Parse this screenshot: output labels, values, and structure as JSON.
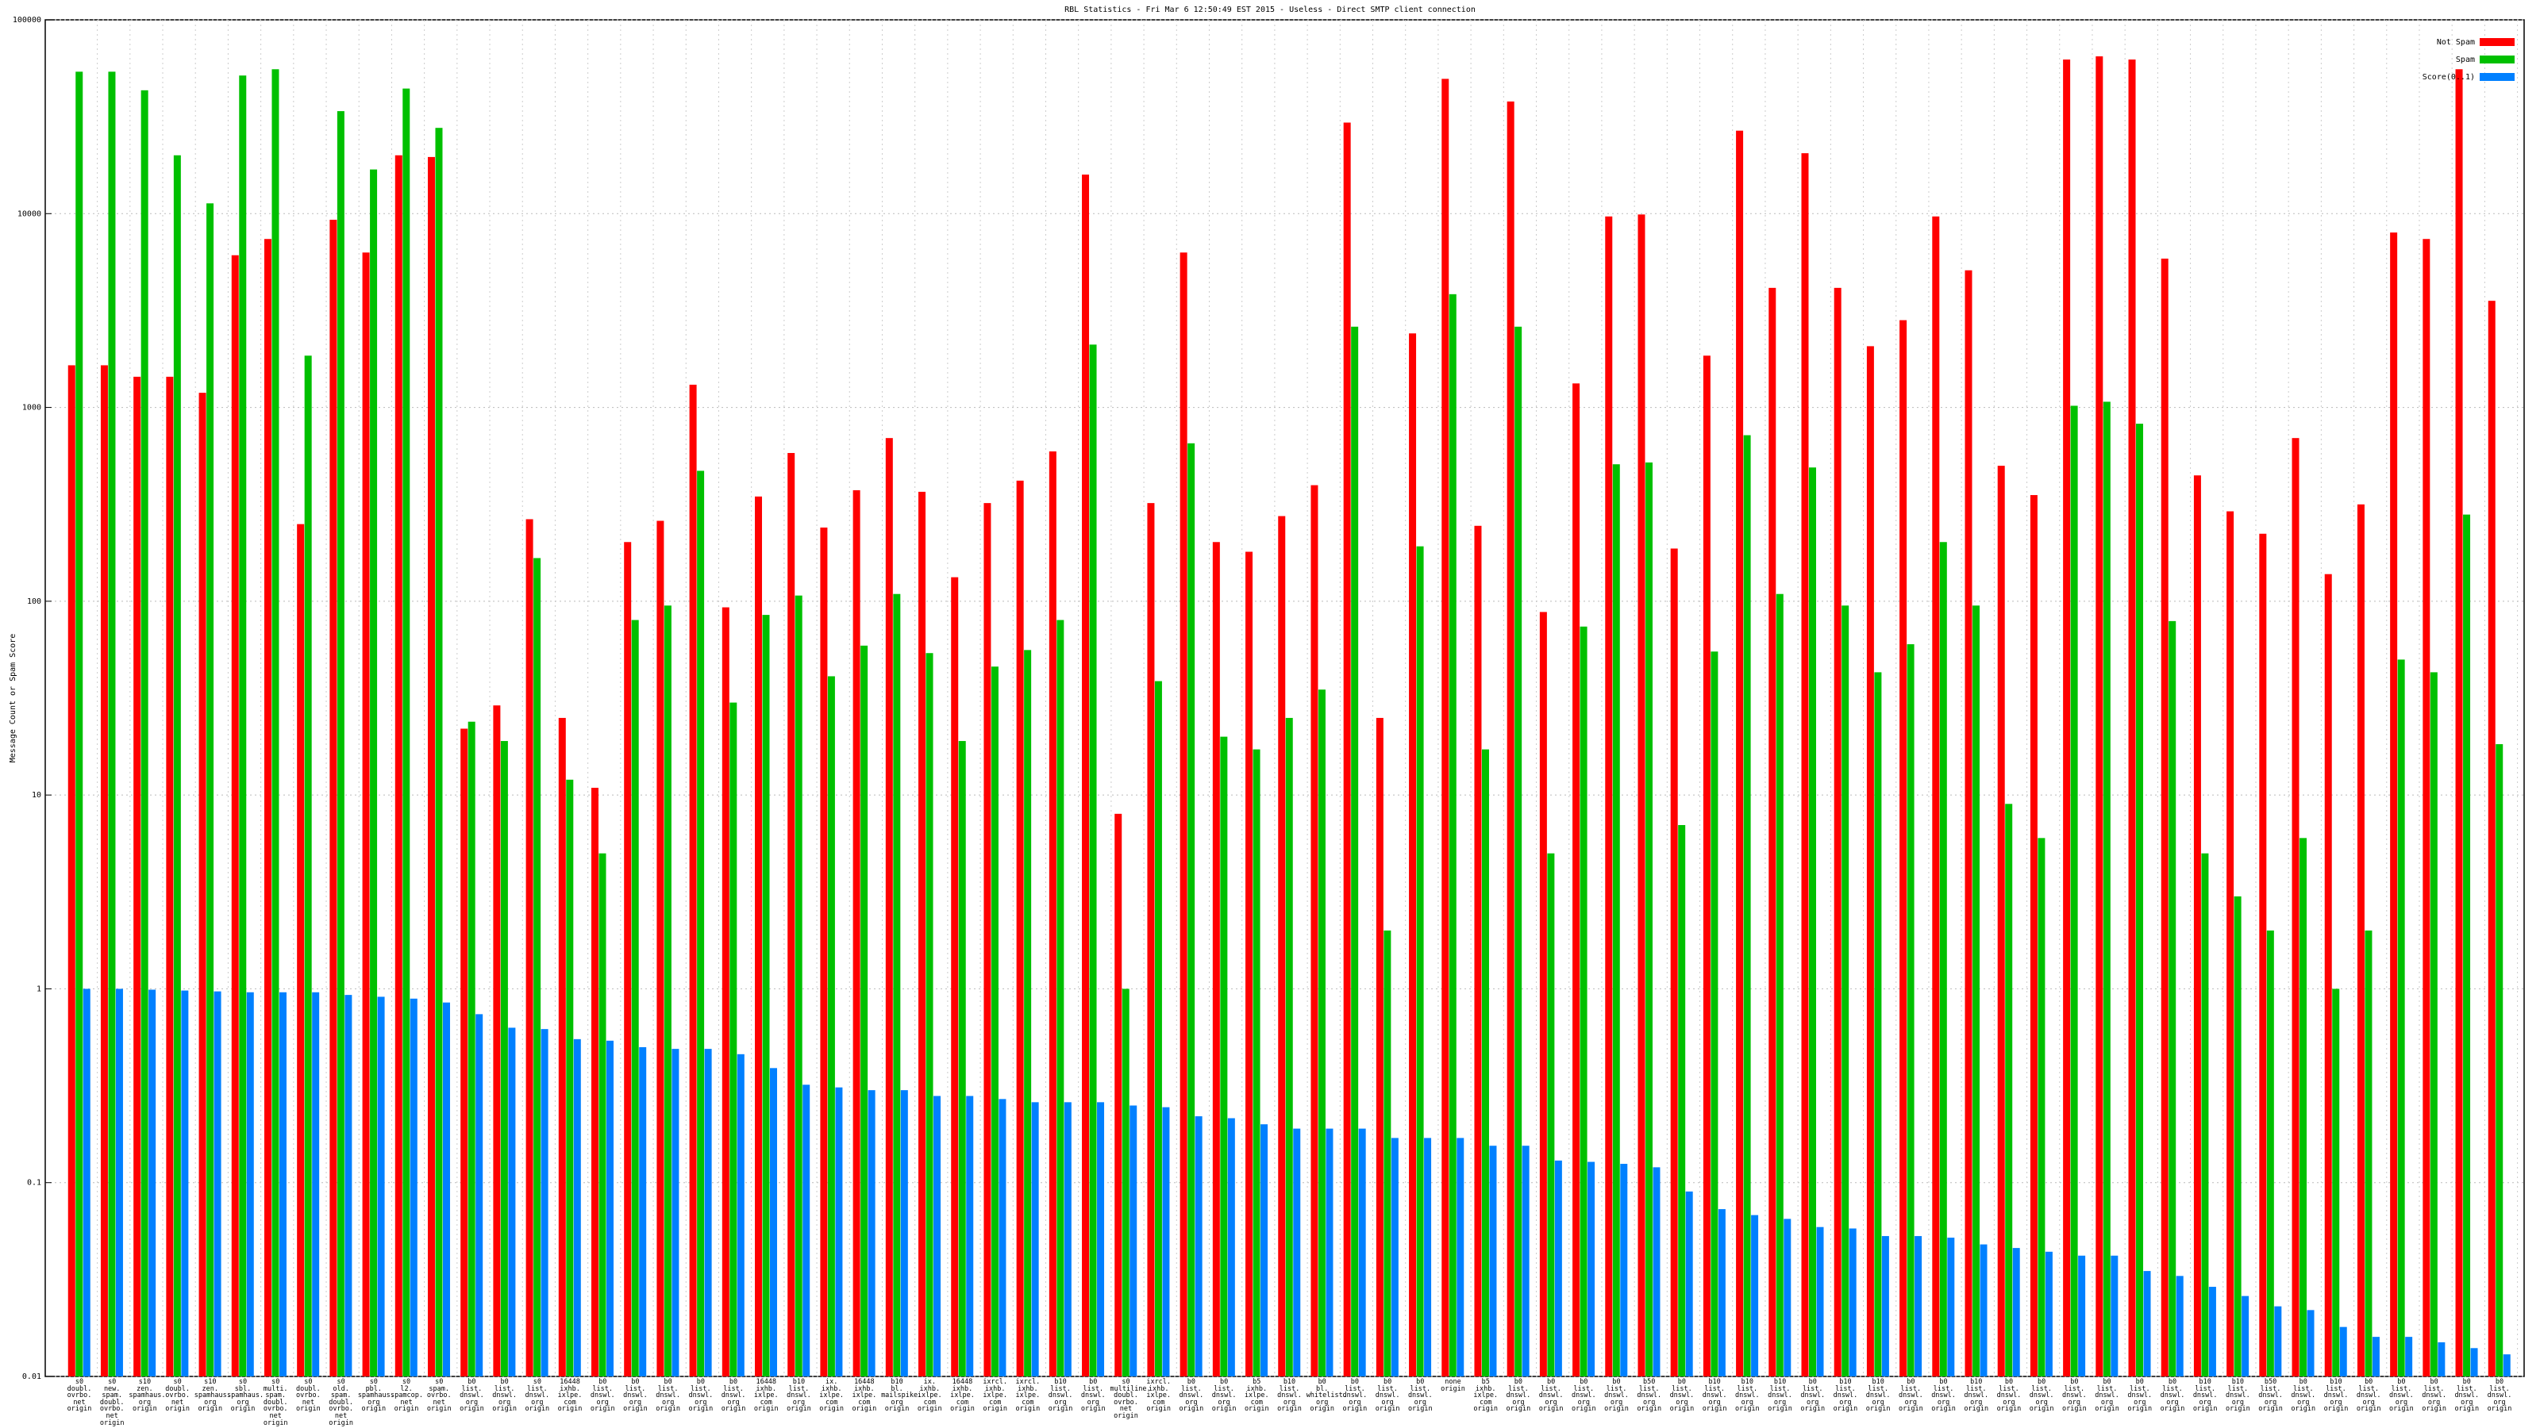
{
  "chart_data": {
    "type": "bar",
    "title": "RBL Statistics - Fri Mar  6 12:50:49 EST 2015 - Useless - Direct SMTP client connection",
    "y_label": "Message Count or Spam Score",
    "log_scale": true,
    "grid": true,
    "legend": "upper right",
    "ylim": [
      0.01,
      100000
    ],
    "yticks": [
      0.01,
      0.1,
      1,
      10,
      100,
      1000,
      10000,
      100000
    ],
    "categories": [
      "s0\ndoubl.\novrbo.\nnet\norigin",
      "s0\nnew.\nspam.\ndoubl.\novrbo.\nnet\norigin",
      "s10\nzen.\nspamhaus.\norg\norigin",
      "s0\ndoubl.\novrbo.\nnet\norigin",
      "s10\nzen.\nspamhaus.\norg\norigin",
      "s0\nsbl.\nspamhaus.\norg\norigin",
      "s0\nmulti.\nspam.\ndoubl.\novrbo.\nnet\norigin",
      "s0\ndoubl.\novrbo.\nnet\norigin",
      "s0\nold.\nspam.\ndoubl.\novrbo.\nnet\norigin",
      "s0\npbl.\nspamhaus.\norg\norigin",
      "s0\nl2.\nspamcop.\nnet\norigin",
      "s0\nspam.\novrbo.\nnet\norigin",
      "b0\nlist.\ndnswl.\norg\norigin",
      "b0\nlist.\ndnswl.\norg\norigin",
      "s0\nlist.\ndnswl.\norg\norigin",
      "16448\nixhb.\nixlpe.\ncom\norigin",
      "b0\nlist.\ndnswl.\norg\norigin",
      "b0\nlist.\ndnswl.\norg\norigin",
      "b0\nlist.\ndnswl.\norg\norigin",
      "b0\nlist.\ndnswl.\norg\norigin",
      "b0\nlist.\ndnswl.\norg\norigin",
      "16448\nixhb.\nixlpe.\ncom\norigin",
      "b10\nlist.\ndnswl.\norg\norigin",
      "ix.\nixhb.\nixlpe.\ncom\norigin",
      "16448\nixhb.\nixlpe.\ncom\norigin",
      "b10\nbl.\nmailspike.\norg\norigin",
      "ix.\nixhb.\nixlpe.\ncom\norigin",
      "16448\nixhb.\nixlpe.\ncom\norigin",
      "ixrcl.\nixhb.\nixlpe.\ncom\norigin",
      "ixrcl.\nixhb.\nixlpe.\ncom\norigin",
      "b10\nlist.\ndnswl.\norg\norigin",
      "b0\nlist.\ndnswl.\norg\norigin",
      "s0\nmultiline.\ndoubl.\novrbo.\nnet\norigin",
      "ixrcl.\nixhb.\nixlpe.\ncom\norigin",
      "b0\nlist.\ndnswl.\norg\norigin",
      "b0\nlist.\ndnswl.\norg\norigin",
      "b5\nixhb.\nixlpe.\ncom\norigin",
      "b10\nlist.\ndnswl.\norg\norigin",
      "b0\nbl.\nwhitelist.\norg\norigin",
      "b0\nlist.\ndnswl.\norg\norigin",
      "b0\nlist.\ndnswl.\norg\norigin",
      "b0\nlist.\ndnswl.\norg\norigin",
      "none\norigin",
      "b5\nixhb.\nixlpe.\ncom\norigin",
      "b0\nlist.\ndnswl.\norg\norigin",
      "b0\nlist.\ndnswl.\norg\norigin",
      "b0\nlist.\ndnswl.\norg\norigin",
      "b0\nlist.\ndnswl.\norg\norigin",
      "b50\nlist.\ndnswl.\norg\norigin",
      "b0\nlist.\ndnswl.\norg\norigin",
      "b10\nlist.\ndnswl.\norg\norigin",
      "b10\nlist.\ndnswl.\norg\norigin",
      "b10\nlist.\ndnswl.\norg\norigin",
      "b0\nlist.\ndnswl.\norg\norigin",
      "b10\nlist.\ndnswl.\norg\norigin",
      "b10\nlist.\ndnswl.\norg\norigin",
      "b0\nlist.\ndnswl.\norg\norigin",
      "b0\nlist.\ndnswl.\norg\norigin",
      "b10\nlist.\ndnswl.\norg\norigin",
      "b0\nlist.\ndnswl.\norg\norigin",
      "b0\nlist.\ndnswl.\norg\norigin",
      "b0\nlist.\ndnswl.\norg\norigin",
      "b0\nlist.\ndnswl.\norg\norigin",
      "b0\nlist.\ndnswl.\norg\norigin",
      "b0\nlist.\ndnswl.\norg\norigin",
      "b10\nlist.\ndnswl.\norg\norigin",
      "b10\nlist.\ndnswl.\norg\norigin",
      "b50\nlist.\ndnswl.\norg\norigin",
      "b0\nlist.\ndnswl.\norg\norigin",
      "b10\nlist.\ndnswl.\norg\norigin",
      "b0\nlist.\ndnswl.\norg\norigin",
      "b0\nlist.\ndnswl.\norg\norigin",
      "b0\nlist.\ndnswl.\norg\norigin",
      "b0\nlist.\ndnswl.\norg\norigin",
      "b0\nlist.\ndnswl.\norg\norigin"
    ],
    "series": [
      {
        "name": "Not Spam",
        "color": "#ff0000",
        "values": [
          1650,
          1650,
          1440,
          1440,
          1190,
          6100,
          7400,
          250,
          9300,
          6300,
          20000,
          19600,
          22,
          29,
          265,
          25,
          10.9,
          202,
          260,
          1310,
          93,
          347,
          582,
          240,
          374,
          695,
          367,
          133,
          321,
          419,
          593,
          15900,
          8,
          321,
          6300,
          202,
          180,
          275,
          397,
          29500,
          25,
          2410,
          49600,
          245,
          37900,
          88,
          1330,
          9670,
          9900,
          187,
          1850,
          26800,
          4140,
          20500,
          4140,
          2070,
          2820,
          9670,
          5100,
          500,
          353,
          62400,
          64800,
          62400,
          5860,
          446,
          291,
          223,
          695,
          138,
          316,
          7990,
          7400,
          55600,
          3550
        ]
      },
      {
        "name": "Spam",
        "color": "#00c000",
        "values": [
          54000,
          54000,
          43300,
          20000,
          11300,
          51600,
          55600,
          1850,
          33800,
          16900,
          44200,
          27700,
          23.9,
          19,
          167,
          12,
          5,
          80,
          95,
          471,
          30,
          85,
          107,
          41,
          59,
          109,
          54,
          19,
          46,
          56,
          80,
          2110,
          1,
          38.7,
          653,
          20,
          17.2,
          25,
          35,
          2610,
          2,
          192,
          3840,
          17.2,
          2610,
          5,
          74,
          509,
          520,
          7,
          55,
          719,
          109,
          490,
          95,
          43,
          60,
          202,
          95,
          9,
          6,
          1020,
          1070,
          824,
          79,
          5,
          3,
          2,
          6,
          1,
          2,
          50,
          43,
          280,
          18.3
        ]
      },
      {
        "name": "Score(0..1)",
        "color": "#0080ff",
        "values": [
          1,
          1,
          0.99,
          0.98,
          0.97,
          0.96,
          0.96,
          0.96,
          0.93,
          0.91,
          0.89,
          0.85,
          0.74,
          0.63,
          0.62,
          0.55,
          0.54,
          0.5,
          0.49,
          0.49,
          0.46,
          0.39,
          0.32,
          0.31,
          0.3,
          0.3,
          0.28,
          0.28,
          0.27,
          0.26,
          0.26,
          0.26,
          0.25,
          0.245,
          0.22,
          0.215,
          0.2,
          0.19,
          0.19,
          0.19,
          0.17,
          0.17,
          0.17,
          0.155,
          0.155,
          0.13,
          0.128,
          0.125,
          0.12,
          0.09,
          0.073,
          0.068,
          0.065,
          0.059,
          0.058,
          0.053,
          0.053,
          0.052,
          0.048,
          0.046,
          0.044,
          0.042,
          0.042,
          0.035,
          0.033,
          0.029,
          0.026,
          0.023,
          0.022,
          0.018,
          0.016,
          0.016,
          0.015,
          0.014,
          0.013
        ]
      }
    ]
  }
}
